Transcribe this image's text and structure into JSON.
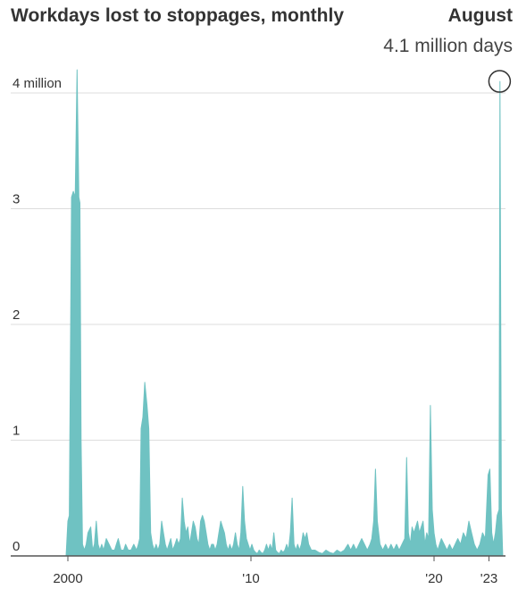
{
  "chart_data": {
    "type": "area",
    "title": "Workdays lost to stoppages, monthly",
    "annotation": {
      "label": "August",
      "value_text": "4.1 million days",
      "x": 2023.58,
      "y": 4.1
    },
    "y_ticks": [
      {
        "value": 0,
        "label": "0"
      },
      {
        "value": 1,
        "label": "1"
      },
      {
        "value": 2,
        "label": "2"
      },
      {
        "value": 3,
        "label": "3"
      },
      {
        "value": 4,
        "label": "4 million"
      }
    ],
    "x_ticks": [
      {
        "value": 2000,
        "label": "2000"
      },
      {
        "value": 2010,
        "label": "'10"
      },
      {
        "value": 2020,
        "label": "'20"
      },
      {
        "value": 2023,
        "label": "'23"
      }
    ],
    "xlim": [
      1999.9,
      2023.75
    ],
    "ylim": [
      0,
      4.2
    ],
    "grid": true,
    "color": "#6fc2c2",
    "series": [
      {
        "x": [
          1999.9,
          2000.0,
          2000.08,
          2000.2,
          2000.3,
          2000.4,
          2000.5,
          2000.6,
          2000.66,
          2000.72,
          2000.8,
          2000.9,
          2001.0,
          2001.1,
          2001.25,
          2001.35,
          2001.45,
          2001.55,
          2001.65,
          2001.75,
          2001.85,
          2001.95,
          2002.1,
          2002.25,
          2002.4,
          2002.55,
          2002.65,
          2002.75,
          2002.9,
          2003.05,
          2003.15,
          2003.3,
          2003.45,
          2003.6,
          2003.75,
          2003.85,
          2003.92,
          2004.0,
          2004.1,
          2004.2,
          2004.32,
          2004.42,
          2004.52,
          2004.62,
          2004.72,
          2004.82,
          2004.92,
          2005.02,
          2005.12,
          2005.22,
          2005.32,
          2005.42,
          2005.52,
          2005.62,
          2005.72,
          2005.85,
          2005.95,
          2006.05,
          2006.15,
          2006.25,
          2006.35,
          2006.45,
          2006.55,
          2006.65,
          2006.75,
          2006.85,
          2006.95,
          2007.05,
          2007.15,
          2007.25,
          2007.35,
          2007.45,
          2007.55,
          2007.65,
          2007.75,
          2007.85,
          2007.95,
          2008.05,
          2008.15,
          2008.25,
          2008.35,
          2008.45,
          2008.55,
          2008.65,
          2008.75,
          2008.85,
          2008.95,
          2009.05,
          2009.15,
          2009.25,
          2009.35,
          2009.45,
          2009.55,
          2009.65,
          2009.75,
          2009.85,
          2009.95,
          2010.05,
          2010.15,
          2010.25,
          2010.35,
          2010.45,
          2010.55,
          2010.65,
          2010.75,
          2010.85,
          2010.95,
          2011.05,
          2011.15,
          2011.25,
          2011.35,
          2011.45,
          2011.55,
          2011.65,
          2011.75,
          2011.85,
          2011.95,
          2012.05,
          2012.15,
          2012.25,
          2012.35,
          2012.45,
          2012.55,
          2012.65,
          2012.75,
          2012.85,
          2012.95,
          2013.05,
          2013.15,
          2013.3,
          2013.5,
          2013.7,
          2013.9,
          2014.1,
          2014.3,
          2014.5,
          2014.7,
          2014.9,
          2015.1,
          2015.3,
          2015.45,
          2015.6,
          2015.75,
          2015.9,
          2016.05,
          2016.2,
          2016.35,
          2016.5,
          2016.6,
          2016.7,
          2016.8,
          2016.9,
          2017.05,
          2017.2,
          2017.35,
          2017.5,
          2017.65,
          2017.8,
          2017.95,
          2018.1,
          2018.25,
          2018.4,
          2018.5,
          2018.6,
          2018.7,
          2018.8,
          2018.9,
          2019.0,
          2019.1,
          2019.2,
          2019.3,
          2019.4,
          2019.5,
          2019.6,
          2019.7,
          2019.8,
          2019.9,
          2020.0,
          2020.1,
          2020.2,
          2020.3,
          2020.4,
          2020.55,
          2020.7,
          2020.85,
          2021.0,
          2021.15,
          2021.3,
          2021.45,
          2021.6,
          2021.75,
          2021.9,
          2022.05,
          2022.2,
          2022.35,
          2022.5,
          2022.65,
          2022.8,
          2022.95,
          2023.05,
          2023.15,
          2023.25,
          2023.35,
          2023.45,
          2023.55,
          2023.6,
          2023.68,
          2023.75
        ],
        "y": [
          0.0,
          0.3,
          0.35,
          3.1,
          3.15,
          3.1,
          4.2,
          3.1,
          3.05,
          1.0,
          0.1,
          0.05,
          0.1,
          0.2,
          0.25,
          0.05,
          0.1,
          0.3,
          0.1,
          0.05,
          0.1,
          0.05,
          0.15,
          0.1,
          0.05,
          0.05,
          0.1,
          0.15,
          0.05,
          0.05,
          0.1,
          0.05,
          0.05,
          0.1,
          0.05,
          0.1,
          0.15,
          1.1,
          1.2,
          1.5,
          1.3,
          1.1,
          0.2,
          0.1,
          0.05,
          0.1,
          0.05,
          0.1,
          0.3,
          0.2,
          0.1,
          0.05,
          0.1,
          0.15,
          0.05,
          0.1,
          0.15,
          0.1,
          0.15,
          0.5,
          0.3,
          0.2,
          0.25,
          0.1,
          0.2,
          0.3,
          0.25,
          0.15,
          0.1,
          0.3,
          0.35,
          0.3,
          0.2,
          0.1,
          0.05,
          0.1,
          0.1,
          0.05,
          0.1,
          0.2,
          0.3,
          0.25,
          0.2,
          0.1,
          0.05,
          0.1,
          0.05,
          0.1,
          0.2,
          0.1,
          0.05,
          0.2,
          0.6,
          0.3,
          0.15,
          0.1,
          0.05,
          0.1,
          0.05,
          0.03,
          0.02,
          0.05,
          0.03,
          0.02,
          0.05,
          0.1,
          0.05,
          0.1,
          0.05,
          0.2,
          0.05,
          0.03,
          0.02,
          0.05,
          0.03,
          0.05,
          0.1,
          0.05,
          0.2,
          0.5,
          0.1,
          0.05,
          0.1,
          0.05,
          0.1,
          0.2,
          0.15,
          0.2,
          0.1,
          0.05,
          0.05,
          0.03,
          0.02,
          0.05,
          0.03,
          0.02,
          0.05,
          0.03,
          0.05,
          0.1,
          0.05,
          0.1,
          0.05,
          0.1,
          0.15,
          0.1,
          0.05,
          0.1,
          0.15,
          0.3,
          0.75,
          0.3,
          0.1,
          0.05,
          0.1,
          0.05,
          0.1,
          0.05,
          0.1,
          0.05,
          0.1,
          0.15,
          0.85,
          0.2,
          0.1,
          0.25,
          0.2,
          0.25,
          0.3,
          0.2,
          0.25,
          0.3,
          0.1,
          0.2,
          0.15,
          1.3,
          0.4,
          0.2,
          0.1,
          0.05,
          0.1,
          0.15,
          0.1,
          0.05,
          0.1,
          0.05,
          0.1,
          0.15,
          0.1,
          0.2,
          0.15,
          0.3,
          0.2,
          0.1,
          0.05,
          0.1,
          0.2,
          0.15,
          0.7,
          0.75,
          0.2,
          0.1,
          0.2,
          0.35,
          0.4,
          4.1,
          0.4,
          0.0
        ]
      }
    ]
  }
}
